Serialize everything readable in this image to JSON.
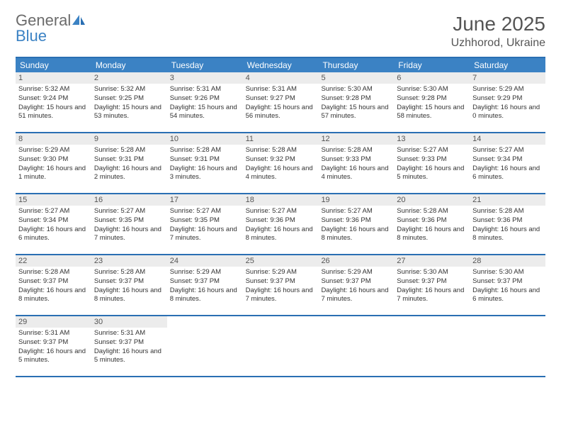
{
  "logo": {
    "word1": "General",
    "word2": "Blue"
  },
  "header": {
    "title": "June 2025",
    "location": "Uzhhorod, Ukraine"
  },
  "colors": {
    "header_bg": "#3b82c4",
    "border": "#2a6fb3",
    "daynum_bg": "#ececec",
    "text_muted": "#555555",
    "text_body": "#333333",
    "logo_gray": "#6b6b6b",
    "logo_blue": "#3b82c4"
  },
  "dow": [
    "Sunday",
    "Monday",
    "Tuesday",
    "Wednesday",
    "Thursday",
    "Friday",
    "Saturday"
  ],
  "weeks": [
    [
      {
        "n": "1",
        "sunrise": "5:32 AM",
        "sunset": "9:24 PM",
        "daylight": "15 hours and 51 minutes."
      },
      {
        "n": "2",
        "sunrise": "5:32 AM",
        "sunset": "9:25 PM",
        "daylight": "15 hours and 53 minutes."
      },
      {
        "n": "3",
        "sunrise": "5:31 AM",
        "sunset": "9:26 PM",
        "daylight": "15 hours and 54 minutes."
      },
      {
        "n": "4",
        "sunrise": "5:31 AM",
        "sunset": "9:27 PM",
        "daylight": "15 hours and 56 minutes."
      },
      {
        "n": "5",
        "sunrise": "5:30 AM",
        "sunset": "9:28 PM",
        "daylight": "15 hours and 57 minutes."
      },
      {
        "n": "6",
        "sunrise": "5:30 AM",
        "sunset": "9:28 PM",
        "daylight": "15 hours and 58 minutes."
      },
      {
        "n": "7",
        "sunrise": "5:29 AM",
        "sunset": "9:29 PM",
        "daylight": "16 hours and 0 minutes."
      }
    ],
    [
      {
        "n": "8",
        "sunrise": "5:29 AM",
        "sunset": "9:30 PM",
        "daylight": "16 hours and 1 minute."
      },
      {
        "n": "9",
        "sunrise": "5:28 AM",
        "sunset": "9:31 PM",
        "daylight": "16 hours and 2 minutes."
      },
      {
        "n": "10",
        "sunrise": "5:28 AM",
        "sunset": "9:31 PM",
        "daylight": "16 hours and 3 minutes."
      },
      {
        "n": "11",
        "sunrise": "5:28 AM",
        "sunset": "9:32 PM",
        "daylight": "16 hours and 4 minutes."
      },
      {
        "n": "12",
        "sunrise": "5:28 AM",
        "sunset": "9:33 PM",
        "daylight": "16 hours and 4 minutes."
      },
      {
        "n": "13",
        "sunrise": "5:27 AM",
        "sunset": "9:33 PM",
        "daylight": "16 hours and 5 minutes."
      },
      {
        "n": "14",
        "sunrise": "5:27 AM",
        "sunset": "9:34 PM",
        "daylight": "16 hours and 6 minutes."
      }
    ],
    [
      {
        "n": "15",
        "sunrise": "5:27 AM",
        "sunset": "9:34 PM",
        "daylight": "16 hours and 6 minutes."
      },
      {
        "n": "16",
        "sunrise": "5:27 AM",
        "sunset": "9:35 PM",
        "daylight": "16 hours and 7 minutes."
      },
      {
        "n": "17",
        "sunrise": "5:27 AM",
        "sunset": "9:35 PM",
        "daylight": "16 hours and 7 minutes."
      },
      {
        "n": "18",
        "sunrise": "5:27 AM",
        "sunset": "9:36 PM",
        "daylight": "16 hours and 8 minutes."
      },
      {
        "n": "19",
        "sunrise": "5:27 AM",
        "sunset": "9:36 PM",
        "daylight": "16 hours and 8 minutes."
      },
      {
        "n": "20",
        "sunrise": "5:28 AM",
        "sunset": "9:36 PM",
        "daylight": "16 hours and 8 minutes."
      },
      {
        "n": "21",
        "sunrise": "5:28 AM",
        "sunset": "9:36 PM",
        "daylight": "16 hours and 8 minutes."
      }
    ],
    [
      {
        "n": "22",
        "sunrise": "5:28 AM",
        "sunset": "9:37 PM",
        "daylight": "16 hours and 8 minutes."
      },
      {
        "n": "23",
        "sunrise": "5:28 AM",
        "sunset": "9:37 PM",
        "daylight": "16 hours and 8 minutes."
      },
      {
        "n": "24",
        "sunrise": "5:29 AM",
        "sunset": "9:37 PM",
        "daylight": "16 hours and 8 minutes."
      },
      {
        "n": "25",
        "sunrise": "5:29 AM",
        "sunset": "9:37 PM",
        "daylight": "16 hours and 7 minutes."
      },
      {
        "n": "26",
        "sunrise": "5:29 AM",
        "sunset": "9:37 PM",
        "daylight": "16 hours and 7 minutes."
      },
      {
        "n": "27",
        "sunrise": "5:30 AM",
        "sunset": "9:37 PM",
        "daylight": "16 hours and 7 minutes."
      },
      {
        "n": "28",
        "sunrise": "5:30 AM",
        "sunset": "9:37 PM",
        "daylight": "16 hours and 6 minutes."
      }
    ],
    [
      {
        "n": "29",
        "sunrise": "5:31 AM",
        "sunset": "9:37 PM",
        "daylight": "16 hours and 5 minutes."
      },
      {
        "n": "30",
        "sunrise": "5:31 AM",
        "sunset": "9:37 PM",
        "daylight": "16 hours and 5 minutes."
      },
      null,
      null,
      null,
      null,
      null
    ]
  ],
  "labels": {
    "sunrise": "Sunrise: ",
    "sunset": "Sunset: ",
    "daylight": "Daylight: "
  }
}
